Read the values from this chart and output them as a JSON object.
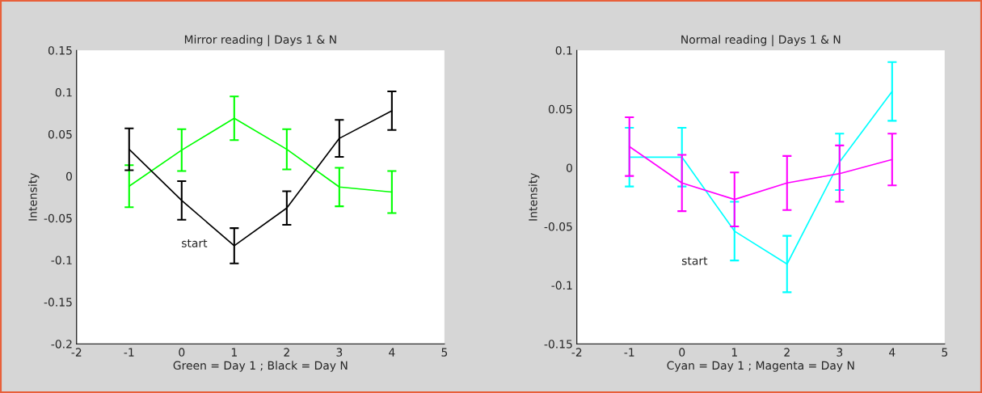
{
  "chart_data": [
    {
      "type": "line",
      "title": "Mirror reading | Days 1 & N",
      "xlabel": "Green = Day 1 ; Black = Day N",
      "ylabel": "Intensity",
      "x": [
        -1,
        0,
        1,
        2,
        3,
        4
      ],
      "xlim": [
        -2,
        5
      ],
      "xticks": [
        -2,
        -1,
        0,
        1,
        2,
        3,
        4,
        5
      ],
      "ylim": [
        -0.2,
        0.15
      ],
      "yticks": [
        -0.2,
        -0.15,
        -0.1,
        -0.05,
        0,
        0.05,
        0.1,
        0.15
      ],
      "grid": false,
      "legend": false,
      "marker": "none",
      "line_style": "solid",
      "series": [
        {
          "color": "#00ff00",
          "values": [
            -0.012,
            0.031,
            0.069,
            0.032,
            -0.013,
            -0.019
          ],
          "errors": [
            0.025,
            0.025,
            0.026,
            0.024,
            0.023,
            0.025
          ]
        },
        {
          "color": "#000000",
          "values": [
            0.032,
            -0.029,
            -0.083,
            -0.038,
            0.045,
            0.078
          ],
          "errors": [
            0.025,
            0.023,
            0.021,
            0.02,
            0.022,
            0.023
          ]
        }
      ],
      "annotations": [
        "start"
      ]
    },
    {
      "type": "line",
      "title": "Normal reading | Days 1 & N",
      "xlabel": "Cyan = Day 1 ; Magenta = Day N",
      "ylabel": "Intensity",
      "x": [
        -1,
        0,
        1,
        2,
        3,
        4
      ],
      "xlim": [
        -2,
        5
      ],
      "xticks": [
        -2,
        -1,
        0,
        1,
        2,
        3,
        4,
        5
      ],
      "ylim": [
        -0.15,
        0.1
      ],
      "yticks": [
        -0.15,
        -0.1,
        -0.05,
        0,
        0.05,
        0.1
      ],
      "grid": false,
      "legend": false,
      "marker": "none",
      "line_style": "solid",
      "series": [
        {
          "color": "#00ffff",
          "values": [
            0.009,
            0.009,
            -0.054,
            -0.082,
            0.005,
            0.065
          ],
          "errors": [
            0.025,
            0.025,
            0.025,
            0.024,
            0.024,
            0.025
          ]
        },
        {
          "color": "#ff00ff",
          "values": [
            0.018,
            -0.013,
            -0.027,
            -0.013,
            -0.005,
            0.007
          ],
          "errors": [
            0.025,
            0.024,
            0.023,
            0.023,
            0.024,
            0.022
          ]
        }
      ],
      "annotations": [
        "start"
      ]
    }
  ]
}
